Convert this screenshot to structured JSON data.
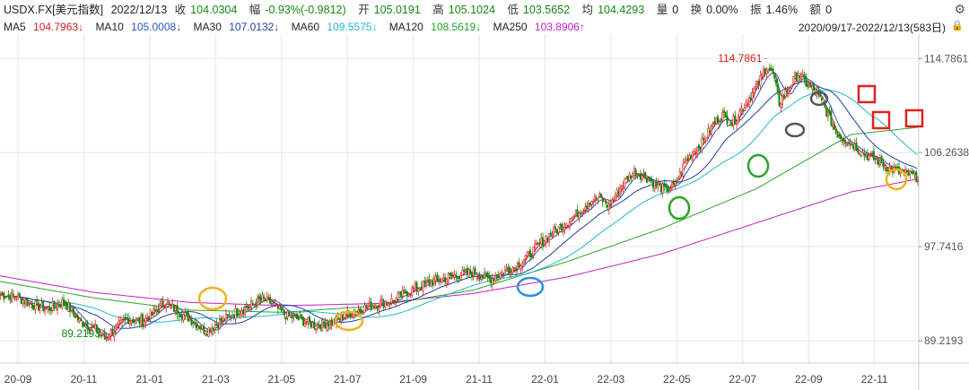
{
  "header": {
    "symbol": "USDX.FX[美元指数]",
    "date": "2022/12/13",
    "close_label": "收",
    "close": "104.0304",
    "change_label": "幅",
    "change": "-0.93%(-0.9812)",
    "open_label": "开",
    "open": "105.0191",
    "high_label": "高",
    "high": "105.1024",
    "low_label": "低",
    "low": "103.5652",
    "avg_label": "均",
    "avg": "104.4293",
    "vol_label": "量",
    "vol": "0",
    "turnover_label": "换",
    "turnover": "0.00%",
    "amplitude_label": "振",
    "amplitude": "1.46%",
    "amount_label": "额",
    "amount": "0",
    "range": "2020/09/17-2022/12/13(583日)"
  },
  "ma": [
    {
      "label": "MA5",
      "value": "104.7963↓",
      "color": "#d61e1e"
    },
    {
      "label": "MA10",
      "value": "105.0008↓",
      "color": "#2a57c9"
    },
    {
      "label": "MA30",
      "value": "107.0132↓",
      "color": "#1f3fa0"
    },
    {
      "label": "MA60",
      "value": "109.5575↓",
      "color": "#22b8c8"
    },
    {
      "label": "MA120",
      "value": "108.5619↓",
      "color": "#2aa52a"
    },
    {
      "label": "MA250",
      "value": "103.8906↑",
      "color": "#c21fc8"
    }
  ],
  "colors": {
    "up": "#d61e1e",
    "down": "#118a11",
    "grid": "#e8e8e8"
  },
  "chart_data": {
    "type": "candlestick",
    "title": "USDX.FX[美元指数]",
    "y_ticks": [
      "114.7861",
      "106.2638",
      "97.7416",
      "89.2193"
    ],
    "ylim": [
      87.2,
      117.0
    ],
    "x_ticks": [
      "20-09",
      "20-11",
      "21-01",
      "21-03",
      "21-05",
      "21-07",
      "21-09",
      "21-11",
      "22-01",
      "22-03",
      "22-05",
      "22-07",
      "22-09",
      "22-11"
    ],
    "annotations": [
      {
        "text": "114.7861",
        "type": "max"
      },
      {
        "text": "89.2193",
        "type": "min"
      }
    ],
    "close_path": [
      [
        0,
        93.4
      ],
      [
        10,
        93.2
      ],
      [
        20,
        92.5
      ],
      [
        30,
        92.1
      ],
      [
        40,
        92.8
      ],
      [
        50,
        91.0
      ],
      [
        60,
        90.3
      ],
      [
        66,
        89.4
      ],
      [
        72,
        90.2
      ],
      [
        80,
        91.2
      ],
      [
        90,
        91.0
      ],
      [
        100,
        92.1
      ],
      [
        104,
        92.8
      ],
      [
        110,
        92.1
      ],
      [
        118,
        91.4
      ],
      [
        124,
        90.8
      ],
      [
        130,
        90.1
      ],
      [
        140,
        91.0
      ],
      [
        150,
        91.9
      ],
      [
        160,
        92.5
      ],
      [
        166,
        93.0
      ],
      [
        172,
        92.6
      ],
      [
        180,
        91.6
      ],
      [
        190,
        91.1
      ],
      [
        200,
        90.6
      ],
      [
        210,
        90.9
      ],
      [
        220,
        91.6
      ],
      [
        230,
        92.2
      ],
      [
        240,
        92.6
      ],
      [
        250,
        92.9
      ],
      [
        256,
        93.5
      ],
      [
        262,
        93.9
      ],
      [
        270,
        94.4
      ],
      [
        280,
        94.8
      ],
      [
        290,
        95.2
      ],
      [
        300,
        95.4
      ],
      [
        305,
        95.1
      ],
      [
        310,
        94.8
      ],
      [
        318,
        95.4
      ],
      [
        326,
        95.9
      ],
      [
        336,
        97.1
      ],
      [
        346,
        98.6
      ],
      [
        356,
        99.6
      ],
      [
        366,
        100.8
      ],
      [
        374,
        101.9
      ],
      [
        380,
        102.2
      ],
      [
        386,
        101.4
      ],
      [
        394,
        103.3
      ],
      [
        402,
        104.6
      ],
      [
        410,
        104.0
      ],
      [
        416,
        103.3
      ],
      [
        422,
        102.9
      ],
      [
        428,
        103.3
      ],
      [
        434,
        105.3
      ],
      [
        440,
        106.5
      ],
      [
        446,
        107.3
      ],
      [
        452,
        108.8
      ],
      [
        458,
        109.7
      ],
      [
        464,
        108.9
      ],
      [
        472,
        110.6
      ],
      [
        480,
        112.3
      ],
      [
        486,
        114.1
      ],
      [
        490,
        113.4
      ],
      [
        494,
        110.8
      ],
      [
        500,
        112.1
      ],
      [
        506,
        113.4
      ],
      [
        512,
        112.4
      ],
      [
        518,
        111.6
      ],
      [
        524,
        110.0
      ],
      [
        530,
        108.1
      ],
      [
        536,
        107.4
      ],
      [
        542,
        106.9
      ],
      [
        548,
        106.1
      ],
      [
        556,
        105.6
      ],
      [
        562,
        105.0
      ],
      [
        570,
        104.5
      ],
      [
        583,
        104.03
      ]
    ],
    "ma250_path": [
      [
        0,
        95.1
      ],
      [
        60,
        93.6
      ],
      [
        120,
        92.7
      ],
      [
        180,
        92.4
      ],
      [
        240,
        92.6
      ],
      [
        300,
        93.5
      ],
      [
        360,
        95.0
      ],
      [
        420,
        97.1
      ],
      [
        480,
        99.9
      ],
      [
        540,
        102.7
      ],
      [
        583,
        103.89
      ]
    ],
    "ma120_path": [
      [
        0,
        94.6
      ],
      [
        60,
        93.1
      ],
      [
        120,
        92.0
      ],
      [
        180,
        91.8
      ],
      [
        240,
        92.4
      ],
      [
        300,
        93.8
      ],
      [
        360,
        96.4
      ],
      [
        420,
        99.4
      ],
      [
        480,
        103.0
      ],
      [
        540,
        107.9
      ],
      [
        583,
        108.56
      ]
    ]
  }
}
